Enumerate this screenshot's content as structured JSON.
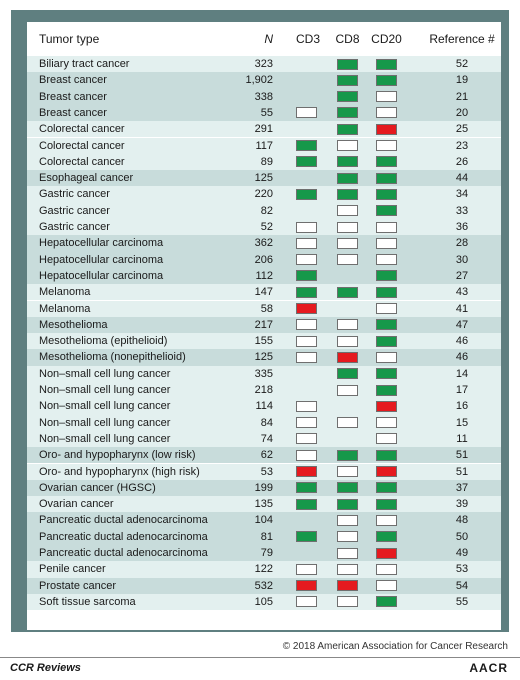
{
  "colors": {
    "positive": "#16984a",
    "negative": "#ffffff",
    "inverse": "#e51a1f",
    "group_a": "#e3f0ef",
    "group_b": "#c8dcdb"
  },
  "header": {
    "tumor_type": "Tumor type",
    "n": "N",
    "cd3": "CD3",
    "cd8": "CD8",
    "cd20": "CD20",
    "reference": "Reference #"
  },
  "rows": [
    {
      "type": "Biliary tract cancer",
      "n": "323",
      "cd3": null,
      "cd8": "pos",
      "cd20": "pos",
      "ref": "52"
    },
    {
      "type": "Breast cancer",
      "n": "1,902",
      "cd3": null,
      "cd8": "pos",
      "cd20": "pos",
      "ref": "19"
    },
    {
      "type": "Breast cancer",
      "n": "338",
      "cd3": null,
      "cd8": "pos",
      "cd20": "neg",
      "ref": "21"
    },
    {
      "type": "Breast cancer",
      "n": "55",
      "cd3": "neg",
      "cd8": "pos",
      "cd20": "neg",
      "ref": "20"
    },
    {
      "type": "Colorectal cancer",
      "n": "291",
      "cd3": null,
      "cd8": "pos",
      "cd20": "inv",
      "ref": "25"
    },
    {
      "type": "Colorectal cancer",
      "n": "117",
      "cd3": "pos",
      "cd8": "neg",
      "cd20": "neg",
      "ref": "23"
    },
    {
      "type": "Colorectal cancer",
      "n": "89",
      "cd3": "pos",
      "cd8": "pos",
      "cd20": "pos",
      "ref": "26"
    },
    {
      "type": "Esophageal cancer",
      "n": "125",
      "cd3": null,
      "cd8": "pos",
      "cd20": "pos",
      "ref": "44"
    },
    {
      "type": "Gastric cancer",
      "n": "220",
      "cd3": "pos",
      "cd8": "pos",
      "cd20": "pos",
      "ref": "34"
    },
    {
      "type": "Gastric cancer",
      "n": "82",
      "cd3": null,
      "cd8": "neg",
      "cd20": "pos",
      "ref": "33"
    },
    {
      "type": "Gastric cancer",
      "n": "52",
      "cd3": "neg",
      "cd8": "neg",
      "cd20": "neg",
      "ref": "36"
    },
    {
      "type": "Hepatocellular carcinoma",
      "n": "362",
      "cd3": "neg",
      "cd8": "neg",
      "cd20": "neg",
      "ref": "28"
    },
    {
      "type": "Hepatocellular carcinoma",
      "n": "206",
      "cd3": "neg",
      "cd8": "neg",
      "cd20": "neg",
      "ref": "30"
    },
    {
      "type": "Hepatocellular carcinoma",
      "n": "112",
      "cd3": "pos",
      "cd8": null,
      "cd20": "pos",
      "ref": "27"
    },
    {
      "type": "Melanoma",
      "n": "147",
      "cd3": "pos",
      "cd8": "pos",
      "cd20": "pos",
      "ref": "43"
    },
    {
      "type": "Melanoma",
      "n": "58",
      "cd3": "inv",
      "cd8": null,
      "cd20": "neg",
      "ref": "41"
    },
    {
      "type": "Mesothelioma",
      "n": "217",
      "cd3": "neg",
      "cd8": "neg",
      "cd20": "pos",
      "ref": "47"
    },
    {
      "type": "Mesothelioma (epithelioid)",
      "n": "155",
      "cd3": "neg",
      "cd8": "neg",
      "cd20": "pos",
      "ref": "46"
    },
    {
      "type": "Mesothelioma (nonepithelioid)",
      "n": "125",
      "cd3": "neg",
      "cd8": "inv",
      "cd20": "neg",
      "ref": "46"
    },
    {
      "type": "Non–small cell lung cancer",
      "n": "335",
      "cd3": null,
      "cd8": "pos",
      "cd20": "pos",
      "ref": "14"
    },
    {
      "type": "Non–small cell lung cancer",
      "n": "218",
      "cd3": null,
      "cd8": "neg",
      "cd20": "pos",
      "ref": "17"
    },
    {
      "type": "Non–small cell lung cancer",
      "n": "114",
      "cd3": "neg",
      "cd8": null,
      "cd20": "inv",
      "ref": "16"
    },
    {
      "type": "Non–small cell lung cancer",
      "n": "84",
      "cd3": "neg",
      "cd8": "neg",
      "cd20": "neg",
      "ref": "15"
    },
    {
      "type": "Non–small cell lung cancer",
      "n": "74",
      "cd3": "neg",
      "cd8": null,
      "cd20": "neg",
      "ref": "11"
    },
    {
      "type": "Oro- and hypopharynx (low risk)",
      "n": "62",
      "cd3": "neg",
      "cd8": "pos",
      "cd20": "pos",
      "ref": "51"
    },
    {
      "type": "Oro- and hypopharynx (high risk)",
      "n": "53",
      "cd3": "inv",
      "cd8": "neg",
      "cd20": "inv",
      "ref": "51"
    },
    {
      "type": "Ovarian cancer (HGSC)",
      "n": "199",
      "cd3": "pos",
      "cd8": "pos",
      "cd20": "pos",
      "ref": "37"
    },
    {
      "type": "Ovarian cancer",
      "n": "135",
      "cd3": "pos",
      "cd8": "pos",
      "cd20": "pos",
      "ref": "39"
    },
    {
      "type": "Pancreatic ductal adenocarcinoma",
      "n": "104",
      "cd3": null,
      "cd8": "neg",
      "cd20": "neg",
      "ref": "48"
    },
    {
      "type": "Pancreatic ductal adenocarcinoma",
      "n": "81",
      "cd3": "pos",
      "cd8": "neg",
      "cd20": "pos",
      "ref": "50"
    },
    {
      "type": "Pancreatic ductal adenocarcinoma",
      "n": "79",
      "cd3": null,
      "cd8": "neg",
      "cd20": "inv",
      "ref": "49"
    },
    {
      "type": "Penile cancer",
      "n": "122",
      "cd3": "neg",
      "cd8": "neg",
      "cd20": "neg",
      "ref": "53"
    },
    {
      "type": "Prostate cancer",
      "n": "532",
      "cd3": "inv",
      "cd8": "inv",
      "cd20": "neg",
      "ref": "54"
    },
    {
      "type": "Soft tissue sarcoma",
      "n": "105",
      "cd3": "neg",
      "cd8": "neg",
      "cd20": "pos",
      "ref": "55"
    }
  ],
  "copyright": "© 2018 American Association for Cancer Research",
  "footer": {
    "brand": "CCR Reviews",
    "org": "AACR"
  }
}
